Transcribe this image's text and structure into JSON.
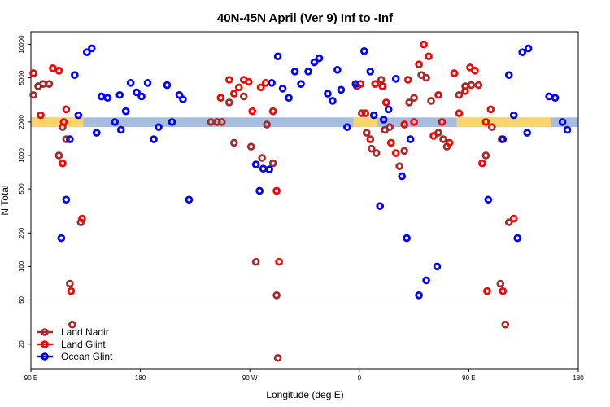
{
  "chart_data": {
    "type": "scatter",
    "title": "40N-45N April (Ver 9)   Inf to -Inf",
    "xlabel": "Longitude (deg E)",
    "ylabel": "N Total",
    "y_scale": "log",
    "ylim": [
      12,
      13000
    ],
    "threshold_line": 50,
    "x_domain_degE": [
      90,
      540
    ],
    "x_ticks": [
      {
        "value": 90,
        "label": "90 E"
      },
      {
        "value": 180,
        "label": "180"
      },
      {
        "value": 270,
        "label": "90 W"
      },
      {
        "value": 360,
        "label": "0"
      },
      {
        "value": 450,
        "label": "90 E"
      },
      {
        "value": 540,
        "label": "180"
      }
    ],
    "y_ticks": [
      {
        "value": 20,
        "label": "20"
      },
      {
        "value": 50,
        "label": "50"
      },
      {
        "value": 100,
        "label": "100"
      },
      {
        "value": 200,
        "label": "200"
      },
      {
        "value": 500,
        "label": "500"
      },
      {
        "value": 1000,
        "label": "1000"
      },
      {
        "value": 2000,
        "label": "2000"
      },
      {
        "value": 5000,
        "label": "5000"
      },
      {
        "value": 10000,
        "label": "10000"
      }
    ],
    "band": {
      "y_range": [
        1800,
        2200
      ],
      "colors": {
        "ocean": "#a7bddf",
        "land": "#f9d46a"
      },
      "land_ranges": [
        [
          90,
          133
        ],
        [
          355,
          375
        ],
        [
          440,
          518
        ]
      ]
    },
    "legend": {
      "position": "bottom-left"
    },
    "series": [
      {
        "name": "Land Nadir",
        "color": "#a52a2a",
        "points": [
          [
            92,
            3500
          ],
          [
            96,
            4200
          ],
          [
            100,
            4400
          ],
          [
            105,
            4400
          ],
          [
            113,
            1000
          ],
          [
            116,
            1800
          ],
          [
            119,
            1400
          ],
          [
            122,
            70
          ],
          [
            124,
            30
          ],
          [
            131,
            250
          ],
          [
            238,
            2000
          ],
          [
            243,
            2000
          ],
          [
            247,
            2000
          ],
          [
            253,
            3000
          ],
          [
            257,
            1300
          ],
          [
            265,
            3400
          ],
          [
            271,
            1200
          ],
          [
            275,
            110
          ],
          [
            280,
            950
          ],
          [
            284,
            1900
          ],
          [
            289,
            850
          ],
          [
            292,
            55
          ],
          [
            293,
            15
          ],
          [
            358,
            4200
          ],
          [
            362,
            2400
          ],
          [
            366,
            1600
          ],
          [
            370,
            1150
          ],
          [
            374,
            1050
          ],
          [
            378,
            4800
          ],
          [
            381,
            1700
          ],
          [
            385,
            1800
          ],
          [
            393,
            800
          ],
          [
            397,
            1100
          ],
          [
            401,
            3000
          ],
          [
            405,
            3300
          ],
          [
            411,
            5300
          ],
          [
            415,
            5000
          ],
          [
            419,
            3100
          ],
          [
            425,
            1600
          ],
          [
            429,
            1400
          ],
          [
            432,
            1200
          ],
          [
            442,
            3500
          ],
          [
            447,
            4200
          ],
          [
            452,
            4300
          ],
          [
            458,
            4300
          ],
          [
            464,
            1000
          ],
          [
            469,
            1800
          ],
          [
            476,
            70
          ],
          [
            477,
            1400
          ],
          [
            480,
            30
          ],
          [
            483,
            250
          ]
        ]
      },
      {
        "name": "Land Glint",
        "color": "#ff0000",
        "points": [
          [
            92,
            5500
          ],
          [
            98,
            2300
          ],
          [
            108,
            6100
          ],
          [
            113,
            5800
          ],
          [
            119,
            2600
          ],
          [
            123,
            60
          ],
          [
            117,
            2000
          ],
          [
            116,
            850
          ],
          [
            132,
            270
          ],
          [
            246,
            3300
          ],
          [
            253,
            4800
          ],
          [
            257,
            3600
          ],
          [
            261,
            4100
          ],
          [
            265,
            4800
          ],
          [
            269,
            4600
          ],
          [
            272,
            2500
          ],
          [
            279,
            4100
          ],
          [
            283,
            4500
          ],
          [
            289,
            2500
          ],
          [
            292,
            480
          ],
          [
            294,
            110
          ],
          [
            361,
            4400
          ],
          [
            365,
            2400
          ],
          [
            369,
            1400
          ],
          [
            373,
            4400
          ],
          [
            379,
            4200
          ],
          [
            382,
            3000
          ],
          [
            386,
            1300
          ],
          [
            390,
            1050
          ],
          [
            397,
            1900
          ],
          [
            400,
            4800
          ],
          [
            405,
            2000
          ],
          [
            409,
            6600
          ],
          [
            413,
            10000
          ],
          [
            417,
            7800
          ],
          [
            421,
            1500
          ],
          [
            425,
            3500
          ],
          [
            428,
            2000
          ],
          [
            434,
            1300
          ],
          [
            438,
            5500
          ],
          [
            442,
            2400
          ],
          [
            447,
            3800
          ],
          [
            451,
            6200
          ],
          [
            455,
            5800
          ],
          [
            461,
            850
          ],
          [
            464,
            2000
          ],
          [
            465,
            60
          ],
          [
            468,
            2600
          ],
          [
            478,
            60
          ],
          [
            487,
            270
          ]
        ]
      },
      {
        "name": "Ocean Glint",
        "color": "#0000ff",
        "points": [
          [
            122,
            1400
          ],
          [
            126,
            5300
          ],
          [
            129,
            2300
          ],
          [
            115,
            180
          ],
          [
            119,
            400
          ],
          [
            136,
            8500
          ],
          [
            140,
            9200
          ],
          [
            144,
            1600
          ],
          [
            148,
            3400
          ],
          [
            153,
            3300
          ],
          [
            163,
            3500
          ],
          [
            172,
            4500
          ],
          [
            177,
            3700
          ],
          [
            181,
            3400
          ],
          [
            159,
            2000
          ],
          [
            164,
            1700
          ],
          [
            168,
            2500
          ],
          [
            186,
            4500
          ],
          [
            191,
            1400
          ],
          [
            195,
            1800
          ],
          [
            202,
            4300
          ],
          [
            206,
            2000
          ],
          [
            212,
            3500
          ],
          [
            215,
            3200
          ],
          [
            220,
            400
          ],
          [
            275,
            830
          ],
          [
            278,
            480
          ],
          [
            281,
            760
          ],
          [
            286,
            750
          ],
          [
            288,
            4500
          ],
          [
            293,
            7800
          ],
          [
            297,
            4000
          ],
          [
            302,
            3300
          ],
          [
            307,
            5700
          ],
          [
            312,
            4400
          ],
          [
            318,
            5700
          ],
          [
            323,
            6900
          ],
          [
            327,
            7500
          ],
          [
            334,
            3600
          ],
          [
            338,
            3100
          ],
          [
            342,
            5900
          ],
          [
            345,
            3900
          ],
          [
            350,
            1800
          ],
          [
            357,
            4400
          ],
          [
            364,
            8700
          ],
          [
            369,
            5700
          ],
          [
            372,
            2300
          ],
          [
            377,
            350
          ],
          [
            380,
            2100
          ],
          [
            384,
            2600
          ],
          [
            390,
            4900
          ],
          [
            395,
            650
          ],
          [
            399,
            180
          ],
          [
            402,
            1400
          ],
          [
            409,
            55
          ],
          [
            415,
            75
          ],
          [
            424,
            100
          ],
          [
            478,
            1400
          ],
          [
            483,
            5300
          ],
          [
            487,
            2300
          ],
          [
            494,
            8500
          ],
          [
            499,
            9200
          ],
          [
            490,
            180
          ],
          [
            466,
            400
          ],
          [
            498,
            1600
          ],
          [
            516,
            3400
          ],
          [
            521,
            3300
          ],
          [
            527,
            2000
          ],
          [
            531,
            1700
          ]
        ]
      }
    ]
  }
}
